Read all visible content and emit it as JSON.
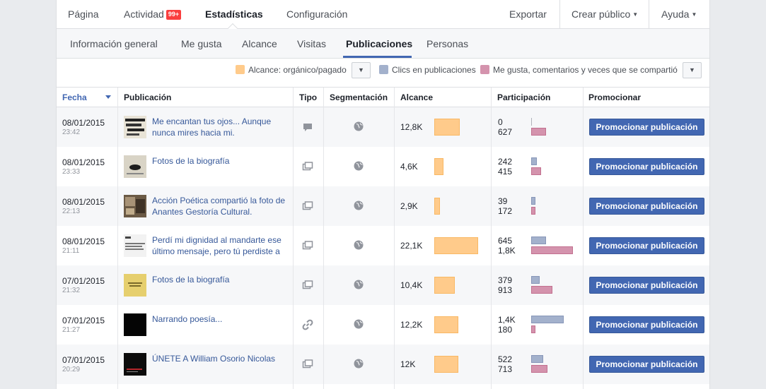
{
  "topnav": {
    "page": "Página",
    "activity": "Actividad",
    "activity_badge": "99+",
    "stats": "Estadísticas",
    "settings": "Configuración",
    "export": "Exportar",
    "create_audience": "Crear público",
    "help": "Ayuda"
  },
  "subnav": {
    "tabs": [
      "Información general",
      "Me gusta",
      "Alcance",
      "Visitas",
      "Publicaciones",
      "Personas"
    ],
    "active": "Publicaciones"
  },
  "legend": {
    "reach": "Alcance: orgánico/pagado",
    "clicks": "Clics en publicaciones",
    "reactions": "Me gusta, comentarios y veces que se compartió",
    "colors": {
      "reach": "#ffcb8b",
      "clicks": "#a3b1cc",
      "reactions": "#d493ad"
    }
  },
  "table": {
    "headers": [
      "Fecha",
      "Publicación",
      "Tipo",
      "Segmentación",
      "Alcance",
      "Participación",
      "Promocionar"
    ],
    "sorted_by": "Fecha",
    "promote_label": "Promocionar publicación",
    "rows": [
      {
        "date": "08/01/2015",
        "time": "23:42",
        "title": "Me encantan tus ojos... Aunque nunca mires hacia mi.",
        "type_icon": "status-icon",
        "reach": "12,8K",
        "reach_value": 12800,
        "clicks": "0",
        "clicks_value": 0,
        "reactions": "627",
        "reactions_value": 627,
        "thumb": "dark-text"
      },
      {
        "date": "08/01/2015",
        "time": "23:33",
        "title": "Fotos de la biografía",
        "type_icon": "photo-icon",
        "reach": "4,6K",
        "reach_value": 4600,
        "clicks": "242",
        "clicks_value": 242,
        "reactions": "415",
        "reactions_value": 415,
        "thumb": "lips"
      },
      {
        "date": "08/01/2015",
        "time": "22:13",
        "title": "Acción Poética compartió la foto de Anantes Gestoría Cultural.",
        "type_icon": "photo-icon",
        "reach": "2,9K",
        "reach_value": 2900,
        "clicks": "39",
        "clicks_value": 39,
        "reactions": "172",
        "reactions_value": 172,
        "thumb": "sepia"
      },
      {
        "date": "08/01/2015",
        "time": "21:11",
        "title": "Perdí mi dignidad al mandarte ese último mensaje, pero tú perdiste a",
        "type_icon": "photo-icon",
        "reach": "22,1K",
        "reach_value": 22100,
        "clicks": "645",
        "clicks_value": 645,
        "reactions": "1,8K",
        "reactions_value": 1800,
        "thumb": "text"
      },
      {
        "date": "07/01/2015",
        "time": "21:32",
        "title": "Fotos de la biografía",
        "type_icon": "photo-icon",
        "reach": "10,4K",
        "reach_value": 10400,
        "clicks": "379",
        "clicks_value": 379,
        "reactions": "913",
        "reactions_value": 913,
        "thumb": "yellow"
      },
      {
        "date": "07/01/2015",
        "time": "21:27",
        "title": "Narrando poesía...",
        "type_icon": "link-icon",
        "reach": "12,2K",
        "reach_value": 12200,
        "clicks": "1,4K",
        "clicks_value": 1400,
        "reactions": "180",
        "reactions_value": 180,
        "thumb": "black"
      },
      {
        "date": "07/01/2015",
        "time": "20:29",
        "title": "ÚNETE A William Osorio Nicolas",
        "type_icon": "photo-icon",
        "reach": "12K",
        "reach_value": 12000,
        "clicks": "522",
        "clicks_value": 522,
        "reactions": "713",
        "reactions_value": 713,
        "thumb": "black-red"
      }
    ]
  }
}
